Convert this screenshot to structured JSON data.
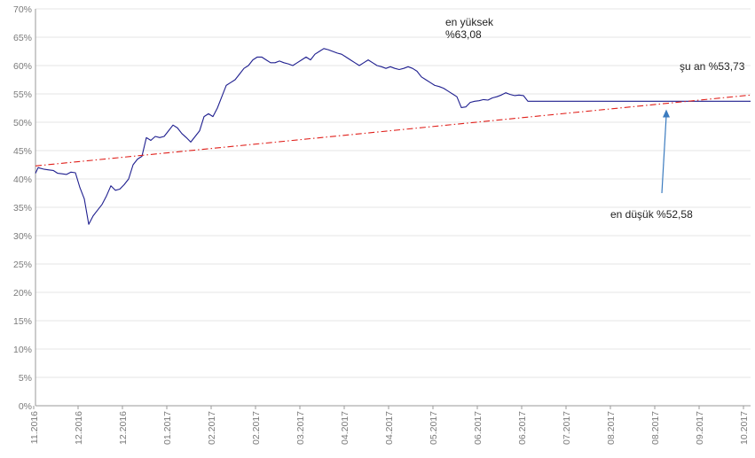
{
  "chart_data": {
    "type": "line",
    "title": "",
    "xlabel": "",
    "ylabel": "",
    "ylim": [
      0,
      70
    ],
    "y_ticks": [
      "0%",
      "5%",
      "10%",
      "15%",
      "20%",
      "25%",
      "30%",
      "35%",
      "40%",
      "45%",
      "50%",
      "55%",
      "60%",
      "65%",
      "70%"
    ],
    "x_ticks": [
      "11.2016",
      "12.2016",
      "12.2016",
      "01.2017",
      "02.2017",
      "02.2017",
      "03.2017",
      "04.2017",
      "04.2017",
      "05.2017",
      "06.2017",
      "06.2017",
      "07.2017",
      "08.2017",
      "08.2017",
      "09.2017",
      "10.2017"
    ],
    "grid": "horizontal",
    "legend": "none",
    "colors": {
      "series": "#1f1f8f",
      "trend": "#e0201b",
      "arrow": "#3b7bbf",
      "grid": "#e6e6e6",
      "axis": "#9a9a9a"
    },
    "series": [
      {
        "style": "solid",
        "x": [
          0,
          3,
          5,
          10,
          15,
          20,
          25,
          30,
          35,
          40,
          45,
          50,
          55,
          60,
          65,
          70,
          75,
          80,
          85,
          90,
          95,
          100,
          105,
          110,
          115,
          120,
          125,
          130,
          135,
          140,
          145,
          150,
          155,
          160,
          165,
          170,
          175,
          180,
          185,
          190,
          195,
          200,
          205,
          210,
          215,
          220,
          225,
          230,
          235,
          240,
          245,
          250,
          255,
          260,
          265,
          270,
          275,
          280,
          285,
          290,
          295,
          300,
          305,
          310,
          315,
          320,
          325,
          330,
          335,
          340,
          345,
          350,
          355,
          360,
          365,
          370,
          375,
          380,
          385,
          390,
          395,
          400,
          405,
          410,
          415,
          420,
          425,
          430,
          435,
          440,
          445,
          450,
          455,
          460,
          465,
          470,
          475,
          480,
          485,
          490,
          495,
          500,
          505,
          510,
          515,
          520,
          525,
          530,
          535,
          540,
          545,
          550,
          555,
          560,
          565,
          570,
          575,
          580,
          585,
          590,
          595,
          600,
          605,
          610,
          615,
          620,
          625,
          630,
          635,
          640,
          645,
          650,
          655,
          660,
          665,
          670,
          675,
          680,
          685,
          690,
          695,
          700,
          705,
          710,
          715,
          720,
          725,
          730,
          735,
          740,
          745,
          750,
          755,
          760,
          765,
          770,
          775,
          780,
          785,
          790,
          795,
          800,
          803,
          806
        ],
        "values": [
          41.0,
          42.0,
          41.9,
          41.7,
          41.6,
          41.5,
          41.0,
          40.9,
          40.8,
          41.2,
          41.1,
          38.5,
          36.5,
          32.0,
          33.5,
          34.5,
          35.5,
          37.0,
          38.8,
          38.0,
          38.2,
          39.0,
          40.0,
          42.5,
          43.5,
          44.0,
          47.3,
          46.8,
          47.5,
          47.3,
          47.5,
          48.5,
          49.5,
          49.0,
          48.0,
          47.3,
          46.5,
          47.5,
          48.5,
          51.0,
          51.5,
          51.0,
          52.5,
          54.5,
          56.5,
          57.0,
          57.5,
          58.5,
          59.5,
          60.0,
          61.0,
          61.5,
          61.5,
          61.0,
          60.5,
          60.5,
          60.8,
          60.5,
          60.3,
          60.0,
          60.5,
          61.0,
          61.5,
          61.0,
          62.0,
          62.5,
          63.0,
          62.8,
          62.5,
          62.2,
          62.0,
          61.5,
          61.0,
          60.5,
          60.0,
          60.5,
          61.0,
          60.5,
          60.0,
          59.8,
          59.5,
          59.8,
          59.5,
          59.3,
          59.5,
          59.8,
          59.5,
          59.0,
          58.0,
          57.5,
          57.0,
          56.5,
          56.3,
          56.0,
          55.5,
          55.0,
          54.5,
          52.6,
          52.7,
          53.5,
          53.7,
          53.8,
          54.0,
          53.9,
          54.3,
          54.5,
          54.8,
          55.2,
          54.9,
          54.7,
          54.8,
          54.7,
          53.7,
          53.7,
          53.7,
          53.7,
          53.7,
          53.7,
          53.7,
          53.7,
          53.7,
          53.7,
          53.7,
          53.7,
          53.7,
          53.7,
          53.7,
          53.7,
          53.7,
          53.7,
          53.7,
          53.7,
          53.7,
          53.7,
          53.7,
          53.7,
          53.7,
          53.7,
          53.7,
          53.7,
          53.7,
          53.7,
          53.7,
          53.7,
          53.7,
          53.7,
          53.7,
          53.7,
          53.7,
          53.7,
          53.7,
          53.7,
          53.7,
          53.7,
          53.7,
          53.7,
          53.7,
          53.7,
          53.7,
          53.7,
          53.7,
          53.7,
          53.7,
          53.7
        ]
      },
      {
        "style": "dash-dot",
        "x": [
          0,
          806
        ],
        "values": [
          42.3,
          54.8
        ]
      }
    ],
    "annotations": [
      {
        "lines": [
          "en yüksek",
          "%63,08"
        ],
        "x": 520,
        "value": 63.08
      },
      {
        "lines": [
          "şu an %53,73"
        ],
        "x": 803,
        "value": 53.73
      },
      {
        "lines": [
          "en düşük %52,58"
        ],
        "x": 711,
        "value": 52.58
      }
    ]
  }
}
